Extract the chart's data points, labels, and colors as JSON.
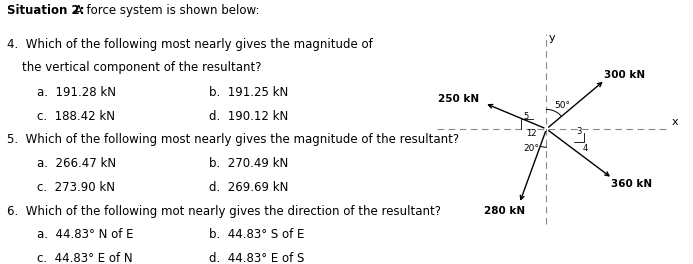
{
  "title_bold": "Situation 2:",
  "title_normal": " A force system is shown below:",
  "q4_line1": "4.  Which of the following most nearly gives the magnitude of",
  "q4_line2": "    the vertical component of the resultant?",
  "q4_a": "a.  191.28 kN",
  "q4_b": "b.  191.25 kN",
  "q4_c": "c.  188.42 kN",
  "q4_d": "d.  190.12 kN",
  "q5_text": "5.  Which of the following most nearly gives the magnitude of the resultant?",
  "q5_a": "a.  266.47 kN",
  "q5_b": "b.  270.49 kN",
  "q5_c": "c.  273.90 kN",
  "q5_d": "d.  269.69 kN",
  "q6_text": "6.  Which of the following mot nearly gives the direction of the resultant?",
  "q6_a": "a.  44.83° N of E",
  "q6_b": "b.  44.83° S of E",
  "q6_c": "c.  44.83° E of N",
  "q6_d": "d.  44.83° E of S",
  "bg_color": "#ffffff",
  "text_color": "#000000",
  "force_300_label": "300 kN",
  "force_250_label": "250 kN",
  "force_280_label": "280 kN",
  "force_360_label": "360 kN",
  "angle_300_label": "50°",
  "angle_280_label": "20°",
  "slope_250_num": "5",
  "slope_250_den": "12",
  "slope_360_num": "3",
  "slope_360_den": "4"
}
